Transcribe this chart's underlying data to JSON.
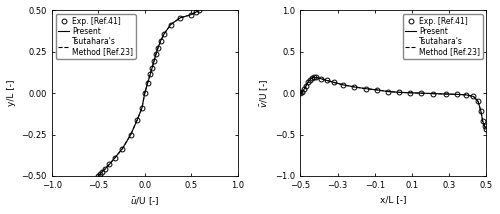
{
  "plot1": {
    "xlabel": "$\\bar{u}$/U [-]",
    "ylabel": "y/L [-]",
    "xlim": [
      -1,
      1
    ],
    "ylim": [
      -0.5,
      0.5
    ],
    "xticks": [
      -1,
      -0.5,
      0,
      0.5,
      1
    ],
    "yticks": [
      -0.5,
      -0.25,
      0,
      0.25,
      0.5
    ],
    "exp_x": [
      -0.5,
      -0.48,
      -0.46,
      -0.43,
      -0.38,
      -0.32,
      -0.24,
      -0.15,
      -0.08,
      -0.03,
      0.0,
      0.03,
      0.06,
      0.08,
      0.1,
      0.12,
      0.14,
      0.17,
      0.21,
      0.28,
      0.38,
      0.5,
      0.55,
      0.58
    ],
    "exp_y": [
      -0.5,
      -0.49,
      -0.475,
      -0.46,
      -0.43,
      -0.39,
      -0.335,
      -0.25,
      -0.16,
      -0.09,
      0.0,
      0.06,
      0.115,
      0.155,
      0.195,
      0.235,
      0.27,
      0.315,
      0.36,
      0.415,
      0.455,
      0.475,
      0.49,
      0.5
    ],
    "line_x": [
      -0.5,
      -0.48,
      -0.46,
      -0.43,
      -0.38,
      -0.32,
      -0.24,
      -0.15,
      -0.08,
      -0.03,
      0.0,
      0.03,
      0.06,
      0.08,
      0.1,
      0.12,
      0.14,
      0.17,
      0.21,
      0.28,
      0.38,
      0.5,
      0.55,
      0.58
    ],
    "line_y": [
      -0.5,
      -0.49,
      -0.475,
      -0.46,
      -0.43,
      -0.39,
      -0.335,
      -0.25,
      -0.16,
      -0.09,
      0.0,
      0.06,
      0.115,
      0.155,
      0.195,
      0.235,
      0.27,
      0.315,
      0.36,
      0.415,
      0.455,
      0.475,
      0.49,
      0.5
    ]
  },
  "plot2": {
    "xlabel": "x/L [-]",
    "ylabel": "$\\bar{v}$/U [-]",
    "xlim": [
      -0.5,
      0.5
    ],
    "ylim": [
      -1,
      1
    ],
    "xticks": [
      -0.5,
      -0.3,
      -0.1,
      0.1,
      0.3,
      0.5
    ],
    "yticks": [
      -1,
      -0.5,
      0,
      0.5,
      1
    ],
    "exp_x": [
      -0.5,
      -0.49,
      -0.48,
      -0.47,
      -0.46,
      -0.45,
      -0.44,
      -0.43,
      -0.415,
      -0.39,
      -0.36,
      -0.32,
      -0.27,
      -0.21,
      -0.15,
      -0.09,
      -0.03,
      0.03,
      0.09,
      0.15,
      0.21,
      0.28,
      0.34,
      0.39,
      0.43,
      0.455,
      0.47,
      0.48,
      0.49,
      0.5
    ],
    "exp_y": [
      0.0,
      0.02,
      0.05,
      0.09,
      0.13,
      0.16,
      0.18,
      0.19,
      0.19,
      0.175,
      0.155,
      0.13,
      0.1,
      0.075,
      0.055,
      0.04,
      0.02,
      0.01,
      0.005,
      0.0,
      -0.005,
      -0.01,
      -0.015,
      -0.02,
      -0.04,
      -0.1,
      -0.22,
      -0.34,
      -0.4,
      -0.43
    ],
    "line_x": [
      -0.5,
      -0.49,
      -0.48,
      -0.47,
      -0.46,
      -0.45,
      -0.44,
      -0.43,
      -0.415,
      -0.39,
      -0.36,
      -0.32,
      -0.27,
      -0.21,
      -0.15,
      -0.09,
      -0.03,
      0.03,
      0.09,
      0.15,
      0.21,
      0.28,
      0.34,
      0.39,
      0.43,
      0.455,
      0.47,
      0.48,
      0.49,
      0.5
    ],
    "line_y": [
      0.0,
      0.02,
      0.05,
      0.09,
      0.13,
      0.16,
      0.18,
      0.19,
      0.19,
      0.175,
      0.155,
      0.13,
      0.1,
      0.075,
      0.055,
      0.04,
      0.02,
      0.01,
      0.005,
      0.0,
      -0.005,
      -0.01,
      -0.015,
      -0.02,
      -0.04,
      -0.1,
      -0.22,
      -0.34,
      -0.4,
      -0.43
    ]
  },
  "legend_labels": [
    "Exp. [Ref.41]",
    "Present",
    "Tsutahara's\nMethod [Ref.23]"
  ],
  "line_color": "#000000",
  "marker_color": "#000000",
  "fontsize": 6.5,
  "tick_fontsize": 6.0,
  "legend_fontsize": 5.5
}
